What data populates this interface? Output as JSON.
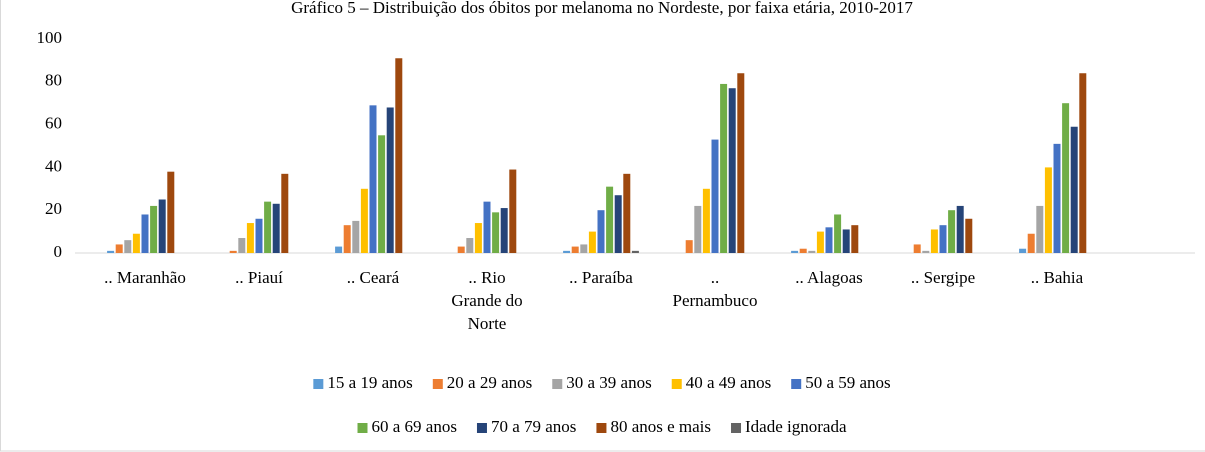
{
  "chart_data": {
    "type": "bar",
    "title": "Gráfico 5 – Distribuição dos óbitos por melanoma no Nordeste, por faixa etária, 2010-2017",
    "categories": [
      ".. Maranhão",
      ".. Piauí",
      ".. Ceará",
      ".. Rio Grande do Norte",
      ".. Paraíba",
      ".. Pernambuco",
      ".. Alagoas",
      ".. Sergipe",
      ".. Bahia"
    ],
    "series": [
      {
        "name": "15 a 19 anos",
        "color": "#5b9bd5",
        "values": [
          1,
          0,
          3,
          0,
          1,
          0,
          1,
          0,
          2
        ]
      },
      {
        "name": "20 a 29 anos",
        "color": "#ed7d31",
        "values": [
          4,
          1,
          13,
          3,
          3,
          6,
          2,
          4,
          9
        ]
      },
      {
        "name": "30 a 39 anos",
        "color": "#a5a5a5",
        "values": [
          6,
          7,
          15,
          7,
          4,
          22,
          1,
          1,
          22
        ]
      },
      {
        "name": "40 a 49 anos",
        "color": "#ffc000",
        "values": [
          9,
          14,
          30,
          14,
          10,
          30,
          10,
          11,
          40
        ]
      },
      {
        "name": "50 a 59 anos",
        "color": "#4472c4",
        "values": [
          18,
          16,
          69,
          24,
          20,
          53,
          12,
          13,
          51
        ]
      },
      {
        "name": "60 a 69 anos",
        "color": "#70ad47",
        "values": [
          22,
          24,
          55,
          19,
          31,
          79,
          18,
          20,
          70
        ]
      },
      {
        "name": "70 a 79 anos",
        "color": "#264478",
        "values": [
          25,
          23,
          68,
          21,
          27,
          77,
          11,
          22,
          59
        ]
      },
      {
        "name": "80 anos e mais",
        "color": "#9e480e",
        "values": [
          38,
          37,
          91,
          39,
          37,
          84,
          13,
          16,
          84
        ]
      },
      {
        "name": "Idade ignorada",
        "color": "#636363",
        "values": [
          0,
          0,
          0,
          0,
          1,
          0,
          0,
          0,
          0
        ]
      }
    ],
    "ylim": [
      0,
      100
    ],
    "yticks": [
      0,
      20,
      40,
      60,
      80,
      100
    ],
    "grid": false,
    "legend": "bottom"
  }
}
